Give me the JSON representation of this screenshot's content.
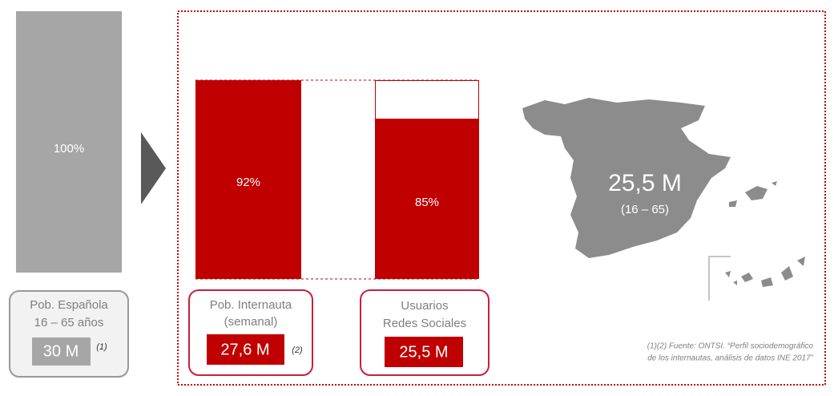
{
  "population": {
    "bar_label": "100%",
    "title_lines": [
      "Pob. Española",
      "16 – 65 años"
    ],
    "value": "30 M",
    "note": "(1)"
  },
  "internet": {
    "bar_label": "92%",
    "title_lines": [
      "Pob. Internauta",
      "(semanal)"
    ],
    "value": "27,6 M",
    "note": "(2)"
  },
  "social": {
    "bar_label": "85%",
    "title_lines": [
      "Usuarios",
      "Redes Sociales"
    ],
    "value": "25,5 M"
  },
  "map": {
    "value": "25,5 M",
    "range": "(16 – 65)"
  },
  "footnote": [
    "(1)(2) Fuente: ONTSI. “Perfil sociodemográfico",
    "de los internautas, análisis de datos INE 2017”"
  ]
}
